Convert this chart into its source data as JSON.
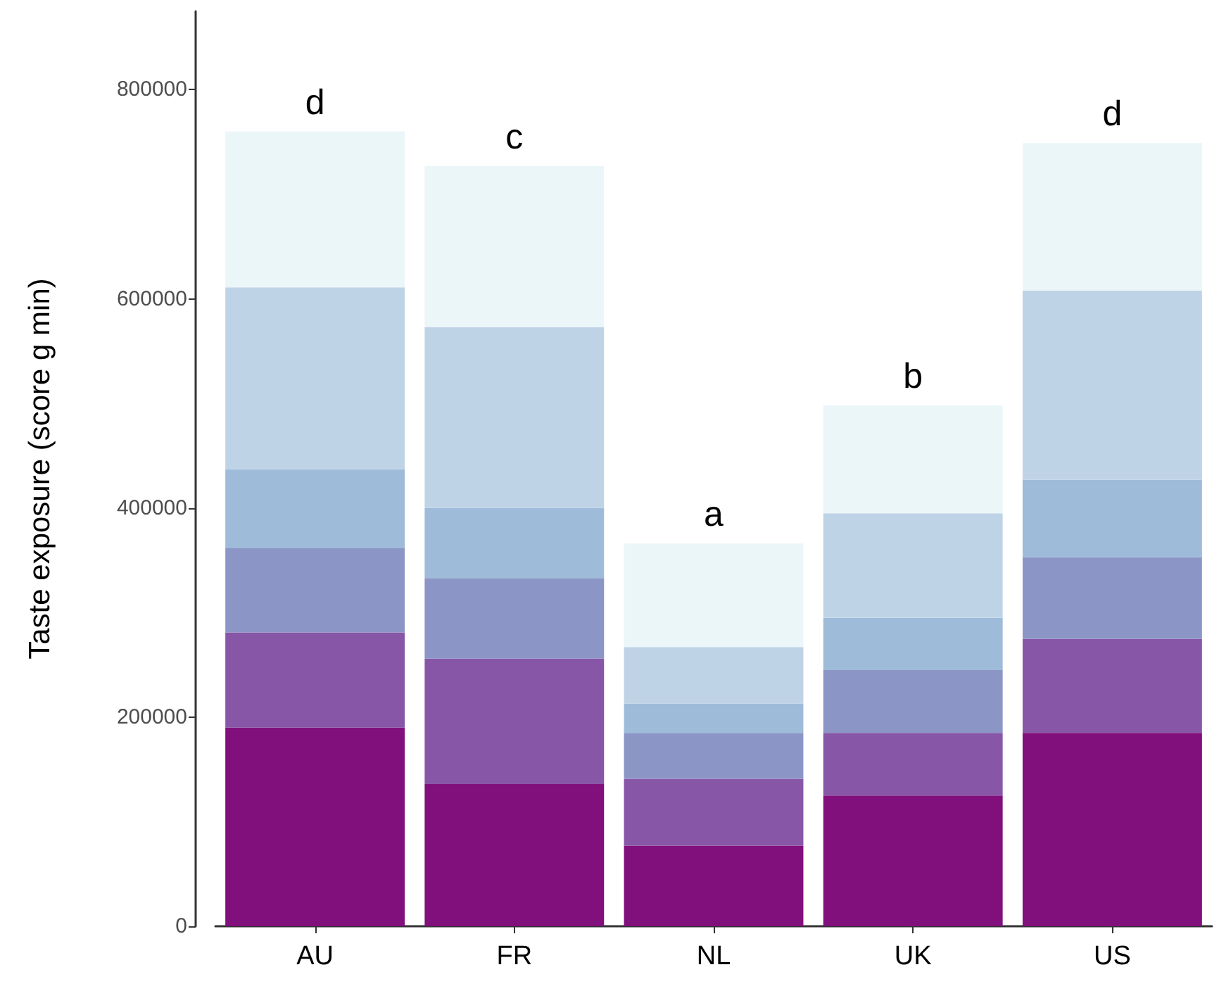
{
  "chart_data": {
    "type": "bar",
    "ylabel": "Taste exposure (score g min)",
    "categories": [
      "AU",
      "FR",
      "NL",
      "UK",
      "US"
    ],
    "stacked": true,
    "series": [
      {
        "color": "#810f7c",
        "values": [
          190000,
          136000,
          77000,
          125000,
          185000
        ]
      },
      {
        "color": "#8856a7",
        "values": [
          91000,
          120000,
          64000,
          60000,
          90000
        ]
      },
      {
        "color": "#8c96c6",
        "values": [
          81000,
          77000,
          44000,
          60000,
          78000
        ]
      },
      {
        "color": "#9ebcda",
        "values": [
          75000,
          67000,
          28000,
          50000,
          74000
        ]
      },
      {
        "color": "#bfd3e6",
        "values": [
          174000,
          173000,
          54000,
          100000,
          181000
        ]
      },
      {
        "color": "#ebf6f9",
        "values": [
          149000,
          154000,
          99000,
          103000,
          141000
        ]
      }
    ],
    "ylim": [
      0,
      875000
    ],
    "yticks": [
      0,
      200000,
      400000,
      600000,
      800000
    ],
    "annotations": [
      {
        "text": "d",
        "x": "AU",
        "y": 760000
      },
      {
        "text": "c",
        "x": "FR",
        "y": 727000
      },
      {
        "text": "a",
        "x": "NL",
        "y": 366000
      },
      {
        "text": "b",
        "x": "UK",
        "y": 498000
      },
      {
        "text": "d",
        "x": "US",
        "y": 749000
      }
    ]
  }
}
